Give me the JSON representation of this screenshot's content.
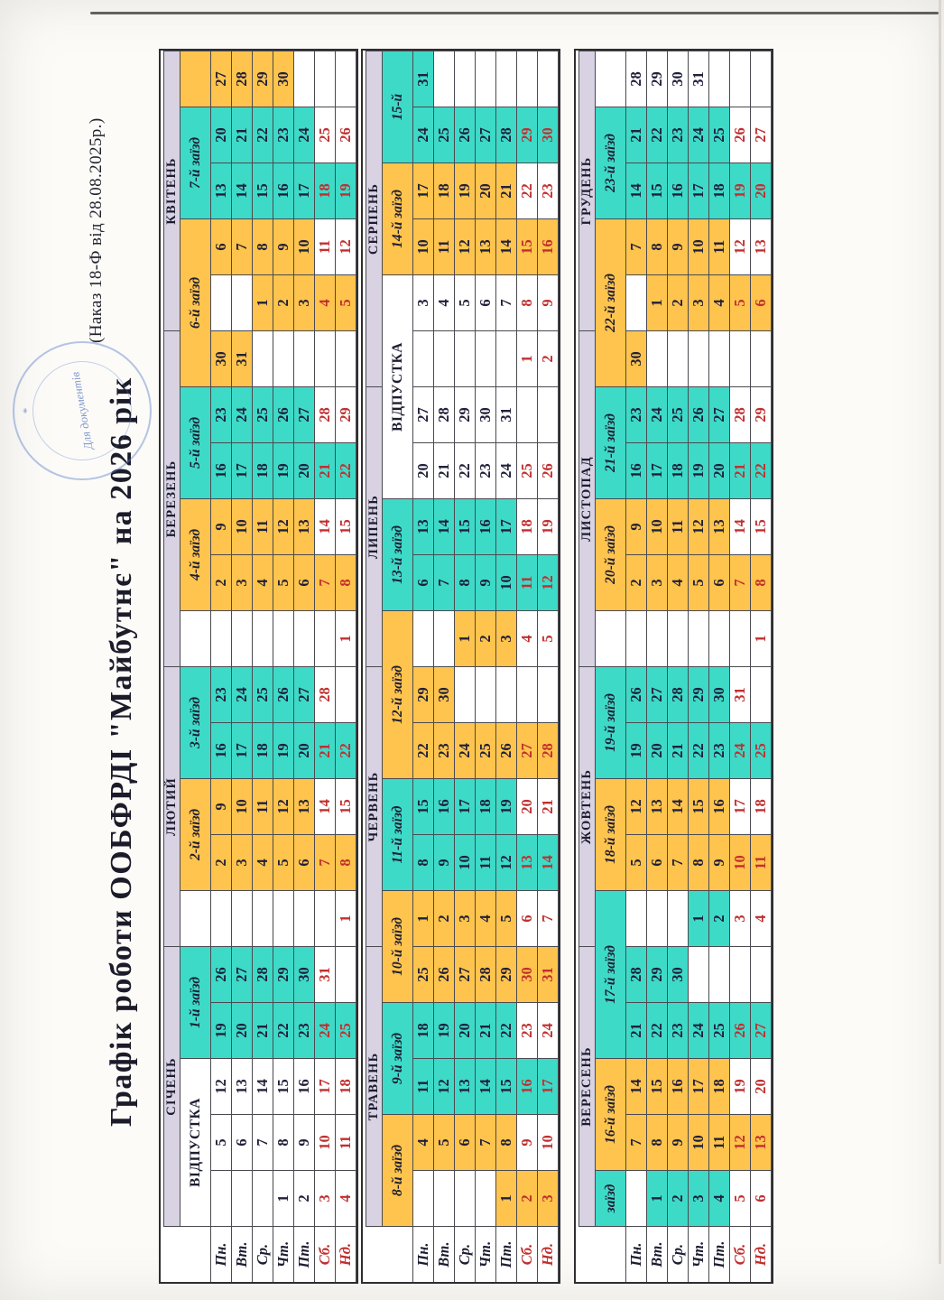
{
  "document": {
    "title": "Графік роботи ООБФРДІ \"Майбутнє\" на 2026 рік",
    "order_note": "(Наказ 18-Ф від 28.08.2025р.)",
    "stamp_text": "Для документів",
    "year": "2026"
  },
  "colors": {
    "teal": "#3edac8",
    "orange": "#ffc44d",
    "lavender": "#d8d2e3",
    "red_text": "#c02f2f",
    "ink": "#20203a",
    "stamp_blue": "#567ac6"
  },
  "day_labels": [
    "Пн.",
    "Вт.",
    "Ср.",
    "Чт.",
    "Пт.",
    "Сб.",
    "Нд."
  ],
  "tables": [
    {
      "headers": [
        {
          "label": "ВІДПУСТКА",
          "span": 3,
          "bg": "w",
          "upright": true
        },
        {
          "label": "1-й заїзд",
          "span": 2,
          "bg": "t"
        },
        {
          "label": "",
          "span": 1,
          "bg": "w"
        },
        {
          "label": "2-й заїзд",
          "span": 2,
          "bg": "o"
        },
        {
          "label": "3-й заїзд",
          "span": 2,
          "bg": "t"
        },
        {
          "label": "",
          "span": 1,
          "bg": "w"
        },
        {
          "label": "4-й заїзд",
          "span": 2,
          "bg": "o"
        },
        {
          "label": "5-й заїзд",
          "span": 2,
          "bg": "t"
        },
        {
          "label": "6-й заїзд",
          "span": 3,
          "bg": "o"
        },
        {
          "label": "7-й заїзд",
          "span": 2,
          "bg": "t"
        },
        {
          "label": "",
          "span": 1,
          "bg": "o"
        }
      ],
      "months": [
        {
          "name": "СІЧЕНЬ",
          "weeks": [
            [
              "",
              "",
              "",
              "1",
              "2",
              "3r",
              "4r"
            ],
            [
              "5",
              "6",
              "7",
              "8",
              "9",
              "10r",
              "11r"
            ],
            [
              "12",
              "13",
              "14",
              "15",
              "16",
              "17r",
              "18r"
            ],
            [
              "19t",
              "20t",
              "21t",
              "22t",
              "23t",
              "24tr",
              "25tr"
            ],
            [
              "26t",
              "27t",
              "28t",
              "29t",
              "30t",
              "31r",
              ""
            ]
          ]
        },
        {
          "name": "ЛЮТИЙ",
          "weeks": [
            [
              "",
              "",
              "",
              "",
              "",
              "",
              "1r"
            ],
            [
              "2o",
              "3o",
              "4o",
              "5o",
              "6o",
              "7or",
              "8or"
            ],
            [
              "9o",
              "10o",
              "11o",
              "12o",
              "13o",
              "14r",
              "15r"
            ],
            [
              "16t",
              "17t",
              "18t",
              "19t",
              "20t",
              "21tr",
              "22tr"
            ],
            [
              "23t",
              "24t",
              "25t",
              "26t",
              "27t",
              "28r",
              ""
            ]
          ]
        },
        {
          "name": "БЕРЕЗЕНЬ",
          "weeks": [
            [
              "",
              "",
              "",
              "",
              "",
              "",
              "1r"
            ],
            [
              "2o",
              "3o",
              "4o",
              "5o",
              "6o",
              "7or",
              "8or"
            ],
            [
              "9o",
              "10o",
              "11o",
              "12o",
              "13o",
              "14r",
              "15r"
            ],
            [
              "16t",
              "17t",
              "18t",
              "19t",
              "20t",
              "21tr",
              "22tr"
            ],
            [
              "23t",
              "24t",
              "25t",
              "26t",
              "27t",
              "28r",
              "29r"
            ],
            [
              "30o",
              "31o",
              "",
              "",
              "",
              "",
              ""
            ]
          ]
        },
        {
          "name": "КВІТЕНЬ",
          "weeks": [
            [
              "",
              "",
              "1o",
              "2o",
              "3o",
              "4or",
              "5or"
            ],
            [
              "6o",
              "7o",
              "8o",
              "9o",
              "10o",
              "11r",
              "12r"
            ],
            [
              "13t",
              "14t",
              "15t",
              "16t",
              "17t",
              "18tr",
              "19tr"
            ],
            [
              "20t",
              "21t",
              "22t",
              "23t",
              "24t",
              "25r",
              "26r"
            ],
            [
              "27o",
              "28o",
              "29o",
              "30o",
              "",
              "",
              ""
            ]
          ]
        }
      ]
    },
    {
      "headers": [
        {
          "label": "8-й заїзд",
          "span": 2,
          "bg": "o"
        },
        {
          "label": "9-й заїзд",
          "span": 2,
          "bg": "t"
        },
        {
          "label": "10-й заїзд",
          "span": 2,
          "bg": "o"
        },
        {
          "label": "11-й заїзд",
          "span": 2,
          "bg": "t"
        },
        {
          "label": "12-й заїзд",
          "span": 3,
          "bg": "o"
        },
        {
          "label": "13-й заїзд",
          "span": 2,
          "bg": "t"
        },
        {
          "label": "ВІДПУСТКА",
          "span": 4,
          "bg": "w",
          "upright": true
        },
        {
          "label": "14-й заїзд",
          "span": 2,
          "bg": "o"
        },
        {
          "label": "15-й",
          "span": 2,
          "bg": "t"
        }
      ],
      "months": [
        {
          "name": "ТРАВЕНЬ",
          "weeks": [
            [
              "",
              "",
              "",
              "",
              "1o",
              "2or",
              "3or"
            ],
            [
              "4o",
              "5o",
              "6o",
              "7o",
              "8o",
              "9r",
              "10r"
            ],
            [
              "11t",
              "12t",
              "13t",
              "14t",
              "15t",
              "16tr",
              "17tr"
            ],
            [
              "18t",
              "19t",
              "20t",
              "21t",
              "22t",
              "23r",
              "24r"
            ],
            [
              "25o",
              "26o",
              "27o",
              "28o",
              "29o",
              "30or",
              "31or"
            ]
          ]
        },
        {
          "name": "ЧЕРВЕНЬ",
          "weeks": [
            [
              "1o",
              "2o",
              "3o",
              "4o",
              "5o",
              "6r",
              "7r"
            ],
            [
              "8t",
              "9t",
              "10t",
              "11t",
              "12t",
              "13tr",
              "14tr"
            ],
            [
              "15t",
              "16t",
              "17t",
              "18t",
              "19t",
              "20r",
              "21r"
            ],
            [
              "22o",
              "23o",
              "24o",
              "25o",
              "26o",
              "27or",
              "28or"
            ],
            [
              "29o",
              "30o",
              "",
              "",
              "",
              "",
              ""
            ]
          ]
        },
        {
          "name": "ЛИПЕНЬ",
          "weeks": [
            [
              "",
              "",
              "1o",
              "2o",
              "3o",
              "4r",
              "5r"
            ],
            [
              "6t",
              "7t",
              "8t",
              "9t",
              "10t",
              "11tr",
              "12tr"
            ],
            [
              "13t",
              "14t",
              "15t",
              "16t",
              "17t",
              "18r",
              "19r"
            ],
            [
              "20",
              "21",
              "22",
              "23",
              "24",
              "25r",
              "26r"
            ],
            [
              "27",
              "28",
              "29",
              "30",
              "31",
              "",
              ""
            ]
          ]
        },
        {
          "name": "СЕРПЕНЬ",
          "weeks": [
            [
              "",
              "",
              "",
              "",
              "",
              "1r",
              "2r"
            ],
            [
              "3",
              "4",
              "5",
              "6",
              "7",
              "8r",
              "9r"
            ],
            [
              "10o",
              "11o",
              "12o",
              "13o",
              "14o",
              "15or",
              "16or"
            ],
            [
              "17o",
              "18o",
              "19o",
              "20o",
              "21o",
              "22r",
              "23r"
            ],
            [
              "24t",
              "25t",
              "26t",
              "27t",
              "28t",
              "29tr",
              "30tr"
            ],
            [
              "31t",
              "",
              "",
              "",
              "",
              "",
              ""
            ]
          ]
        }
      ]
    },
    {
      "headers": [
        {
          "label": "заїзд",
          "span": 1,
          "bg": "t"
        },
        {
          "label": "16-й заїзд",
          "span": 2,
          "bg": "o"
        },
        {
          "label": "17-й заїзд",
          "span": 3,
          "bg": "t"
        },
        {
          "label": "18-й заїзд",
          "span": 2,
          "bg": "o"
        },
        {
          "label": "19-й заїзд",
          "span": 2,
          "bg": "t"
        },
        {
          "label": "",
          "span": 1,
          "bg": "w"
        },
        {
          "label": "20-й заїзд",
          "span": 2,
          "bg": "o"
        },
        {
          "label": "21-й заїзд",
          "span": 2,
          "bg": "t"
        },
        {
          "label": "22-й заїзд",
          "span": 3,
          "bg": "o"
        },
        {
          "label": "23-й заїзд",
          "span": 2,
          "bg": "t"
        },
        {
          "label": "",
          "span": 1,
          "bg": "w"
        }
      ],
      "months": [
        {
          "name": "ВЕРЕСЕНЬ",
          "weeks": [
            [
              "",
              "1t",
              "2t",
              "3t",
              "4t",
              "5r",
              "6r"
            ],
            [
              "7o",
              "8o",
              "9o",
              "10o",
              "11o",
              "12or",
              "13or"
            ],
            [
              "14o",
              "15o",
              "16o",
              "17o",
              "18o",
              "19r",
              "20r"
            ],
            [
              "21t",
              "22t",
              "23t",
              "24t",
              "25t",
              "26tr",
              "27tr"
            ],
            [
              "28t",
              "29t",
              "30t",
              "",
              "",
              "",
              ""
            ]
          ]
        },
        {
          "name": "ЖОВТЕНЬ",
          "weeks": [
            [
              "",
              "",
              "",
              "1t",
              "2t",
              "3r",
              "4r"
            ],
            [
              "5o",
              "6o",
              "7o",
              "8o",
              "9o",
              "10or",
              "11or"
            ],
            [
              "12o",
              "13o",
              "14o",
              "15o",
              "16o",
              "17r",
              "18r"
            ],
            [
              "19t",
              "20t",
              "21t",
              "22t",
              "23t",
              "24tr",
              "25tr"
            ],
            [
              "26t",
              "27t",
              "28t",
              "29t",
              "30t",
              "31r",
              ""
            ]
          ]
        },
        {
          "name": "ЛИСТОПАД",
          "weeks": [
            [
              "",
              "",
              "",
              "",
              "",
              "",
              "1r"
            ],
            [
              "2o",
              "3o",
              "4o",
              "5o",
              "6o",
              "7or",
              "8or"
            ],
            [
              "9o",
              "10o",
              "11o",
              "12o",
              "13o",
              "14r",
              "15r"
            ],
            [
              "16t",
              "17t",
              "18t",
              "19t",
              "20t",
              "21tr",
              "22tr"
            ],
            [
              "23t",
              "24t",
              "25t",
              "26t",
              "27t",
              "28r",
              "29r"
            ],
            [
              "30o",
              "",
              "",
              "",
              "",
              "",
              ""
            ]
          ]
        },
        {
          "name": "ГРУДЕНЬ",
          "weeks": [
            [
              "",
              "1o",
              "2o",
              "3o",
              "4o",
              "5or",
              "6or"
            ],
            [
              "7o",
              "8o",
              "9o",
              "10o",
              "11o",
              "12r",
              "13r"
            ],
            [
              "14t",
              "15t",
              "16t",
              "17t",
              "18t",
              "19tr",
              "20tr"
            ],
            [
              "21t",
              "22t",
              "23t",
              "24t",
              "25t",
              "26r",
              "27r"
            ],
            [
              "28",
              "29",
              "30",
              "31",
              "",
              "",
              ""
            ]
          ]
        }
      ]
    }
  ]
}
